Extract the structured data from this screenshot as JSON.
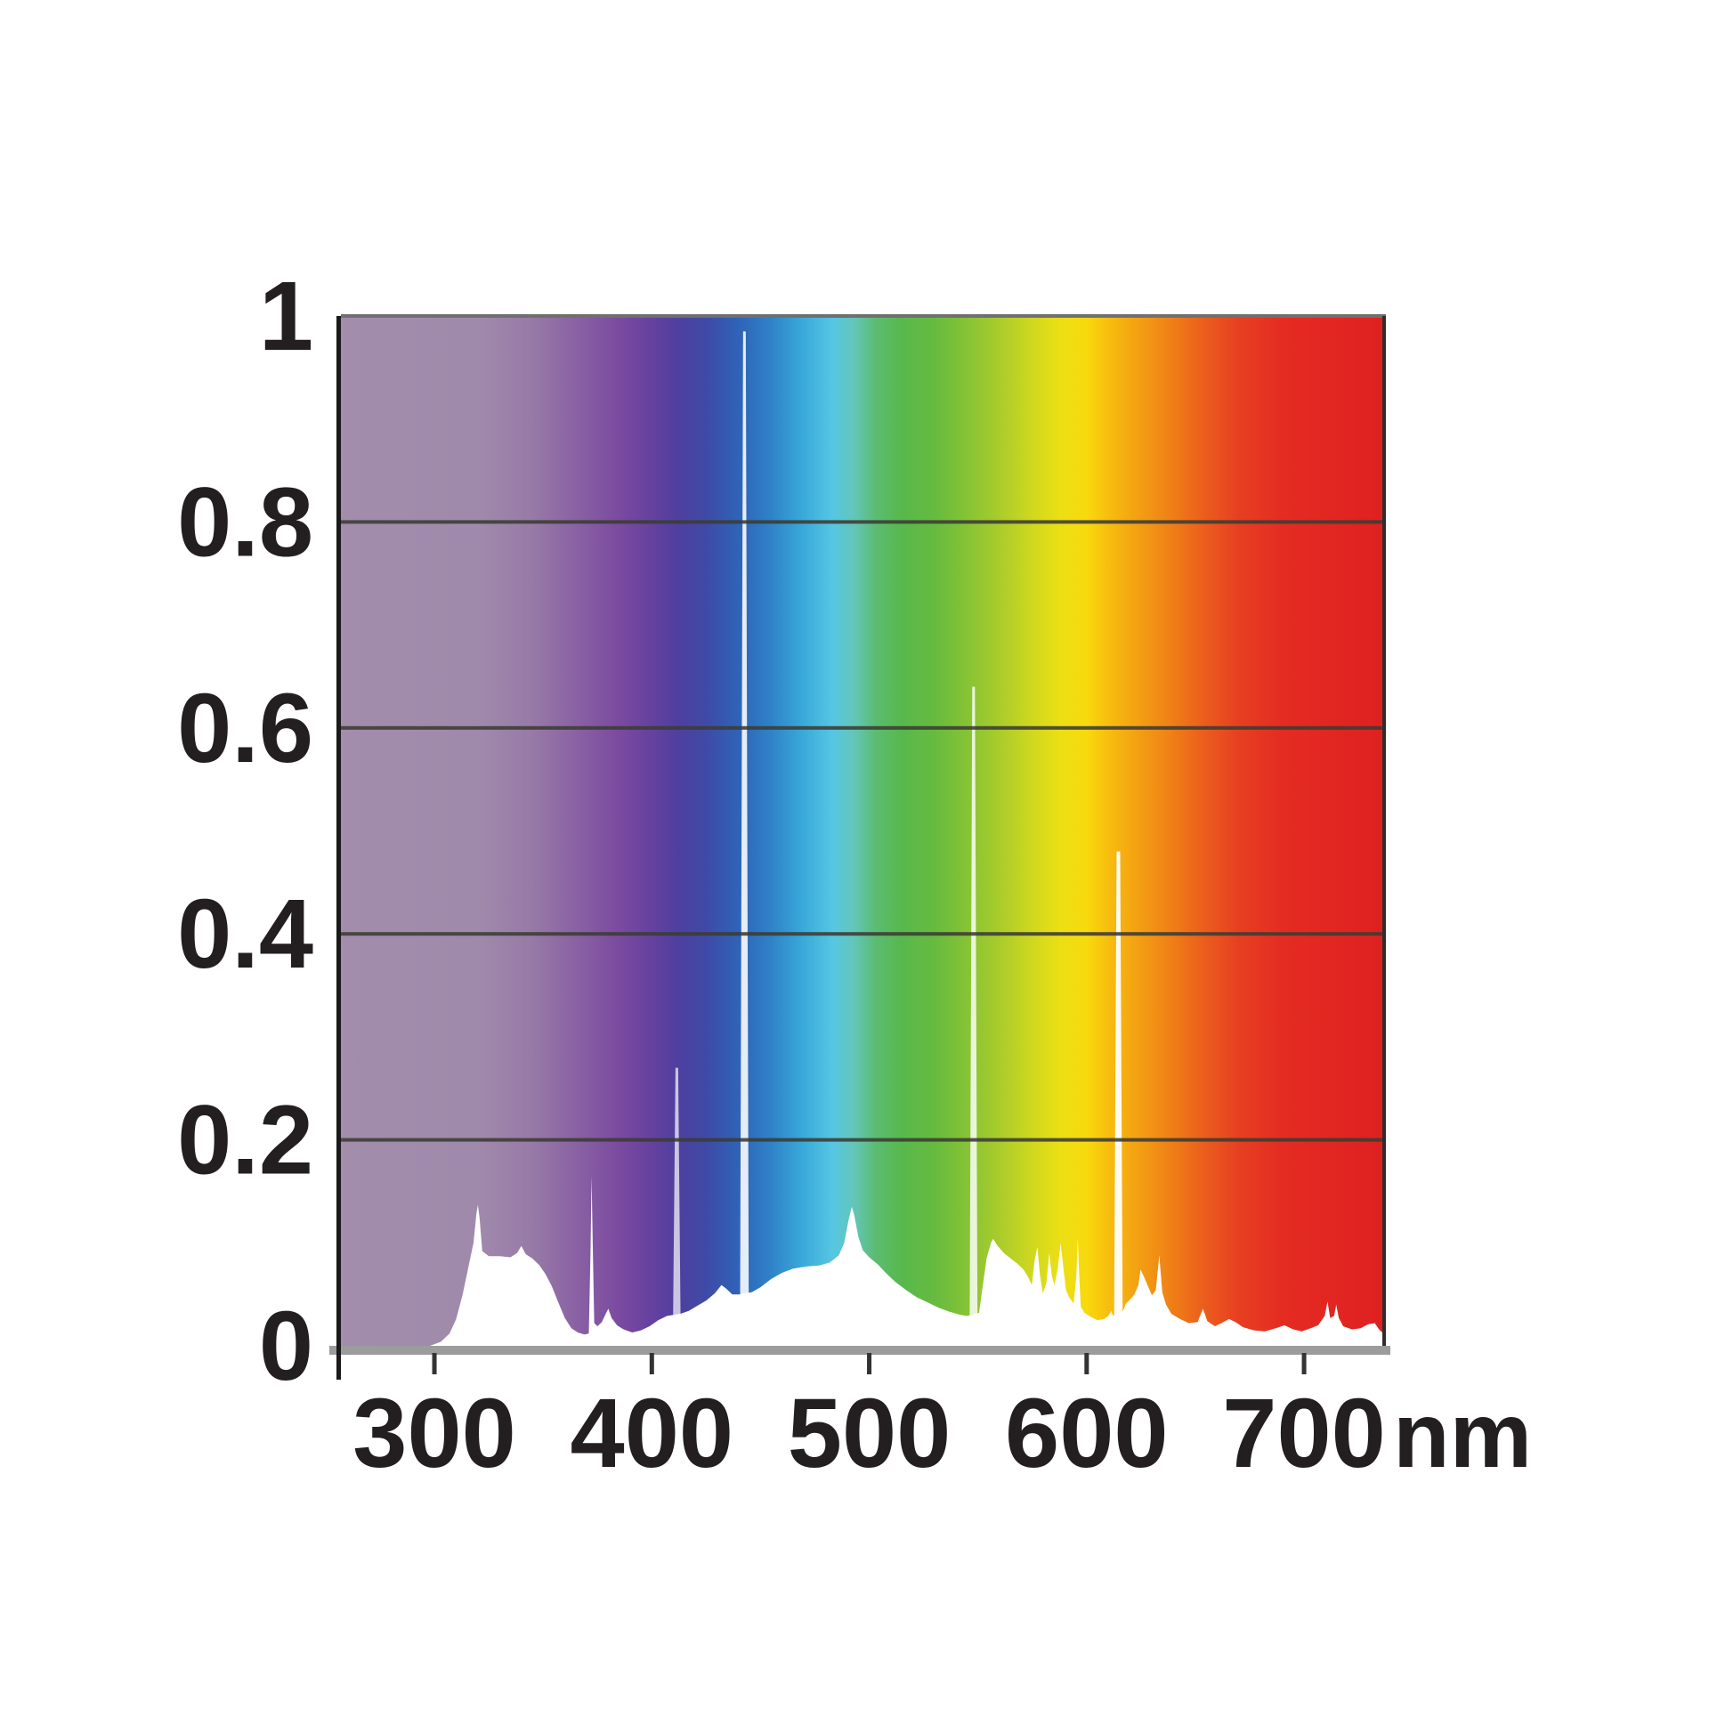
{
  "figure": {
    "background_color": "#ffffff",
    "description": "Lamp emission spectrum over visible-light rainbow gradient"
  },
  "chart_data": {
    "type": "area",
    "title": "",
    "xlabel": "",
    "ylabel": "",
    "x_unit_label": "nm",
    "x_domain_nm": [
      257,
      736
    ],
    "ylim": [
      0,
      1
    ],
    "x_ticks": [
      300,
      400,
      500,
      600,
      700
    ],
    "y_tick_labels": [
      "1",
      "0.8",
      "0.6",
      "0.4",
      "0.2",
      "0"
    ],
    "y_tick_values": [
      1,
      0.8,
      0.6,
      0.4,
      0.2,
      0
    ],
    "gridline_values": [
      0.2,
      0.4,
      0.6,
      0.8
    ],
    "grid_on": true,
    "legend": "none",
    "axes_style": {
      "label_color": "#231f20",
      "grid_color": "#3b3b33",
      "left_axis_color": "#1a1a1a",
      "bottom_axis_color": "#9c9c9c",
      "top_border_color": "#6f6f6f",
      "right_border_color": "#2e2e2e",
      "tick_color": "#333333",
      "curve_fill_color": "#ffffff"
    },
    "spectrum_gradient": [
      {
        "nm": 257,
        "color": "#a28dac"
      },
      {
        "nm": 320,
        "color": "#a08aab"
      },
      {
        "nm": 345,
        "color": "#977aa7"
      },
      {
        "nm": 365,
        "color": "#8a62a3"
      },
      {
        "nm": 385,
        "color": "#7a4aa0"
      },
      {
        "nm": 400,
        "color": "#65419f"
      },
      {
        "nm": 412,
        "color": "#4f3f9f"
      },
      {
        "nm": 425,
        "color": "#3f4aa6"
      },
      {
        "nm": 440,
        "color": "#2f63b7"
      },
      {
        "nm": 455,
        "color": "#2f83c8"
      },
      {
        "nm": 470,
        "color": "#3aaadb"
      },
      {
        "nm": 483,
        "color": "#56c6e3"
      },
      {
        "nm": 493,
        "color": "#63c6b9"
      },
      {
        "nm": 503,
        "color": "#5bbc71"
      },
      {
        "nm": 515,
        "color": "#58b84d"
      },
      {
        "nm": 530,
        "color": "#66bb3f"
      },
      {
        "nm": 545,
        "color": "#86c335"
      },
      {
        "nm": 560,
        "color": "#aacc2b"
      },
      {
        "nm": 575,
        "color": "#d0d81f"
      },
      {
        "nm": 588,
        "color": "#ecdf14"
      },
      {
        "nm": 600,
        "color": "#f8d90e"
      },
      {
        "nm": 612,
        "color": "#f7b90f"
      },
      {
        "nm": 625,
        "color": "#f39d13"
      },
      {
        "nm": 640,
        "color": "#ef7d17"
      },
      {
        "nm": 655,
        "color": "#eb5b1d"
      },
      {
        "nm": 670,
        "color": "#e73f21"
      },
      {
        "nm": 690,
        "color": "#e42c22"
      },
      {
        "nm": 736,
        "color": "#df2020"
      }
    ],
    "emission_spikes": [
      {
        "nm": 411.5,
        "value": 0.27,
        "base_width": 9,
        "top_width": 3,
        "opacity": 0.7
      },
      {
        "nm": 442.6,
        "value": 0.985,
        "base_width": 10,
        "top_width": 3,
        "opacity": 0.88
      },
      {
        "nm": 548.0,
        "value": 0.64,
        "base_width": 9,
        "top_width": 3,
        "opacity": 0.82
      },
      {
        "nm": 614.6,
        "value": 0.48,
        "base_width": 10,
        "top_width": 4,
        "opacity": 0.94
      }
    ],
    "curve_points_nm_value": [
      [
        257,
        0
      ],
      [
        298,
        0
      ],
      [
        303,
        0.004
      ],
      [
        307,
        0.012
      ],
      [
        310,
        0.026
      ],
      [
        313,
        0.05
      ],
      [
        316,
        0.08
      ],
      [
        318,
        0.1
      ],
      [
        319.3,
        0.128
      ],
      [
        320,
        0.137
      ],
      [
        320.8,
        0.124
      ],
      [
        322,
        0.092
      ],
      [
        325,
        0.087
      ],
      [
        330,
        0.087
      ],
      [
        335,
        0.086
      ],
      [
        338,
        0.09
      ],
      [
        340,
        0.097
      ],
      [
        342,
        0.089
      ],
      [
        345,
        0.085
      ],
      [
        348,
        0.079
      ],
      [
        351,
        0.07
      ],
      [
        354,
        0.058
      ],
      [
        357,
        0.042
      ],
      [
        360,
        0.027
      ],
      [
        363,
        0.017
      ],
      [
        366,
        0.013
      ],
      [
        369,
        0.011
      ],
      [
        371,
        0.012
      ],
      [
        371.8,
        0.09
      ],
      [
        372.3,
        0.165
      ],
      [
        372.9,
        0.09
      ],
      [
        373.5,
        0.022
      ],
      [
        375,
        0.019
      ],
      [
        377,
        0.023
      ],
      [
        379,
        0.032
      ],
      [
        380,
        0.036
      ],
      [
        381.5,
        0.027
      ],
      [
        384,
        0.02
      ],
      [
        387,
        0.016
      ],
      [
        391,
        0.013
      ],
      [
        395,
        0.015
      ],
      [
        399,
        0.019
      ],
      [
        403,
        0.025
      ],
      [
        407,
        0.029
      ],
      [
        413,
        0.031
      ],
      [
        417,
        0.034
      ],
      [
        421,
        0.039
      ],
      [
        425,
        0.044
      ],
      [
        429,
        0.051
      ],
      [
        432,
        0.059
      ],
      [
        434,
        0.056
      ],
      [
        437,
        0.05
      ],
      [
        440,
        0.05
      ],
      [
        446,
        0.052
      ],
      [
        450,
        0.057
      ],
      [
        455,
        0.065
      ],
      [
        460,
        0.071
      ],
      [
        465,
        0.075
      ],
      [
        471,
        0.077
      ],
      [
        477,
        0.078
      ],
      [
        482,
        0.081
      ],
      [
        486,
        0.088
      ],
      [
        488.5,
        0.1
      ],
      [
        490.5,
        0.122
      ],
      [
        492,
        0.135
      ],
      [
        493.2,
        0.126
      ],
      [
        495,
        0.106
      ],
      [
        497,
        0.093
      ],
      [
        500,
        0.086
      ],
      [
        504,
        0.079
      ],
      [
        508,
        0.07
      ],
      [
        512,
        0.062
      ],
      [
        517,
        0.054
      ],
      [
        522,
        0.047
      ],
      [
        527,
        0.042
      ],
      [
        532,
        0.037
      ],
      [
        537,
        0.033
      ],
      [
        542,
        0.03
      ],
      [
        545,
        0.029
      ],
      [
        550.5,
        0.032
      ],
      [
        552,
        0.055
      ],
      [
        554,
        0.085
      ],
      [
        556,
        0.1
      ],
      [
        557,
        0.104
      ],
      [
        559,
        0.097
      ],
      [
        562,
        0.09
      ],
      [
        565,
        0.085
      ],
      [
        568,
        0.08
      ],
      [
        571,
        0.074
      ],
      [
        573,
        0.067
      ],
      [
        574.8,
        0.059
      ],
      [
        576,
        0.082
      ],
      [
        577.3,
        0.096
      ],
      [
        578.6,
        0.068
      ],
      [
        579.8,
        0.051
      ],
      [
        581.5,
        0.061
      ],
      [
        582.8,
        0.09
      ],
      [
        584,
        0.068
      ],
      [
        585.2,
        0.059
      ],
      [
        586.8,
        0.076
      ],
      [
        588,
        0.1
      ],
      [
        589.2,
        0.078
      ],
      [
        590.5,
        0.054
      ],
      [
        592,
        0.047
      ],
      [
        594,
        0.041
      ],
      [
        595.3,
        0.068
      ],
      [
        595.9,
        0.105
      ],
      [
        596.6,
        0.068
      ],
      [
        597.3,
        0.038
      ],
      [
        599,
        0.032
      ],
      [
        602,
        0.028
      ],
      [
        605,
        0.025
      ],
      [
        608,
        0.026
      ],
      [
        610,
        0.029
      ],
      [
        611.3,
        0.034
      ],
      [
        612.2,
        0.029
      ],
      [
        616.8,
        0.034
      ],
      [
        618,
        0.041
      ],
      [
        620,
        0.045
      ],
      [
        622,
        0.05
      ],
      [
        623.8,
        0.059
      ],
      [
        624.8,
        0.074
      ],
      [
        626,
        0.069
      ],
      [
        628,
        0.059
      ],
      [
        630,
        0.049
      ],
      [
        631.8,
        0.054
      ],
      [
        633.4,
        0.088
      ],
      [
        634.8,
        0.052
      ],
      [
        636.5,
        0.04
      ],
      [
        639,
        0.031
      ],
      [
        643,
        0.026
      ],
      [
        647,
        0.022
      ],
      [
        651,
        0.023
      ],
      [
        653.5,
        0.036
      ],
      [
        655.5,
        0.024
      ],
      [
        659,
        0.019
      ],
      [
        662,
        0.022
      ],
      [
        665.5,
        0.026
      ],
      [
        668.5,
        0.023
      ],
      [
        672,
        0.018
      ],
      [
        677,
        0.015
      ],
      [
        682,
        0.014
      ],
      [
        687,
        0.017
      ],
      [
        691,
        0.02
      ],
      [
        695,
        0.016
      ],
      [
        699,
        0.014
      ],
      [
        703,
        0.017
      ],
      [
        706.5,
        0.02
      ],
      [
        709.5,
        0.029
      ],
      [
        710.8,
        0.043
      ],
      [
        712,
        0.027
      ],
      [
        713.8,
        0.029
      ],
      [
        714.8,
        0.04
      ],
      [
        716,
        0.027
      ],
      [
        718,
        0.019
      ],
      [
        722,
        0.016
      ],
      [
        726,
        0.017
      ],
      [
        729.5,
        0.021
      ],
      [
        732.5,
        0.022
      ],
      [
        734.5,
        0.016
      ],
      [
        736,
        0.013
      ]
    ]
  }
}
